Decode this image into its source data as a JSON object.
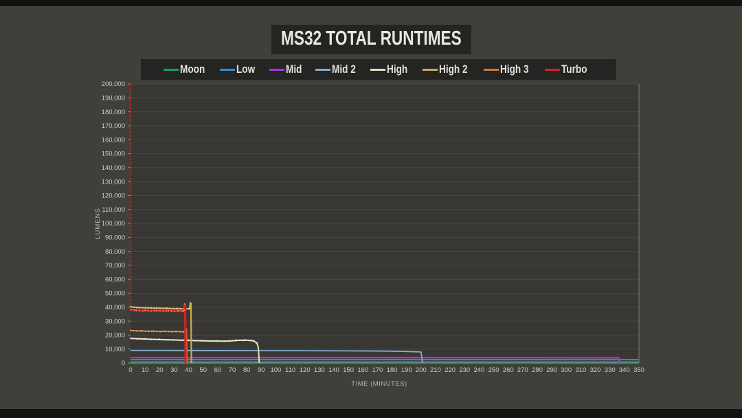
{
  "chart_data": {
    "type": "line",
    "title": "MS32 TOTAL RUNTIMES",
    "xlabel": "TIME (MINUTES)",
    "ylabel": "LUMENS",
    "xlim": [
      0,
      350
    ],
    "xtick_step": 10,
    "ylim": [
      0,
      200000
    ],
    "ytick_step": 10000,
    "grid": "horizontal",
    "legend_position": "top",
    "plot_bg": "#383733",
    "grid_color": "#4a4841",
    "axis_line_color": "#8f8d86",
    "tick_label_color": "#cfcdc6",
    "axis_title_color": "#b8b6af",
    "series": [
      {
        "name": "Moon",
        "color": "#18a05f",
        "width": 2,
        "points": [
          [
            0,
            800
          ],
          [
            350,
            800
          ]
        ]
      },
      {
        "name": "Low",
        "color": "#2e8fd5",
        "width": 2,
        "points": [
          [
            0,
            2400
          ],
          [
            350,
            2400
          ]
        ]
      },
      {
        "name": "Mid",
        "color": "#b02fd8",
        "width": 2.4,
        "points": [
          [
            0,
            3900
          ],
          [
            120,
            3900
          ],
          [
            250,
            3850
          ],
          [
            336,
            3800
          ],
          [
            337,
            0
          ]
        ]
      },
      {
        "name": "Mid 2",
        "color": "#86aed2",
        "width": 1.8,
        "points": [
          [
            0,
            9000
          ],
          [
            60,
            8900
          ],
          [
            120,
            8800
          ],
          [
            170,
            8600
          ],
          [
            185,
            8400
          ],
          [
            196,
            8100
          ],
          [
            200,
            7900
          ],
          [
            201,
            0
          ]
        ]
      },
      {
        "name": "High",
        "color": "#e6e2bd",
        "width": 2,
        "markers": true,
        "points": [
          [
            0,
            17600
          ],
          [
            10,
            17200
          ],
          [
            20,
            16800
          ],
          [
            30,
            16500
          ],
          [
            40,
            16200
          ],
          [
            50,
            15900
          ],
          [
            60,
            15700
          ],
          [
            68,
            15700
          ],
          [
            73,
            16200
          ],
          [
            79,
            16400
          ],
          [
            83,
            16100
          ],
          [
            85,
            15700
          ],
          [
            87,
            14200
          ],
          [
            88,
            11000
          ],
          [
            88.6,
            0
          ]
        ]
      },
      {
        "name": "High 2",
        "color": "#c7ad52",
        "width": 2.2,
        "markers": true,
        "points": [
          [
            0,
            40200
          ],
          [
            6,
            39700
          ],
          [
            12,
            39500
          ],
          [
            18,
            39300
          ],
          [
            25,
            39100
          ],
          [
            32,
            38900
          ],
          [
            38,
            38800
          ],
          [
            40.5,
            38800
          ],
          [
            41.2,
            43000
          ],
          [
            41.6,
            42600
          ],
          [
            41.9,
            0
          ]
        ]
      },
      {
        "name": "High 3",
        "color": "#d4763f",
        "width": 2,
        "markers": true,
        "points": [
          [
            0,
            23200
          ],
          [
            8,
            22900
          ],
          [
            16,
            22700
          ],
          [
            24,
            22600
          ],
          [
            32,
            22500
          ],
          [
            37,
            22400
          ],
          [
            38.1,
            24700
          ],
          [
            38.5,
            24400
          ],
          [
            38.8,
            0
          ]
        ]
      },
      {
        "name": "Turbo",
        "color": "#dc1f1f",
        "width": 3.2,
        "markers": true,
        "drop_in": [
          [
            0,
            200000
          ],
          [
            0.4,
            38200
          ]
        ],
        "points": [
          [
            0.4,
            38200
          ],
          [
            4,
            37600
          ],
          [
            10,
            37500
          ],
          [
            18,
            37400
          ],
          [
            26,
            37300
          ],
          [
            33,
            37200
          ],
          [
            36.3,
            37200
          ],
          [
            37,
            37600
          ],
          [
            37.3,
            42300
          ],
          [
            37.6,
            41900
          ],
          [
            37.9,
            0
          ]
        ]
      }
    ]
  }
}
